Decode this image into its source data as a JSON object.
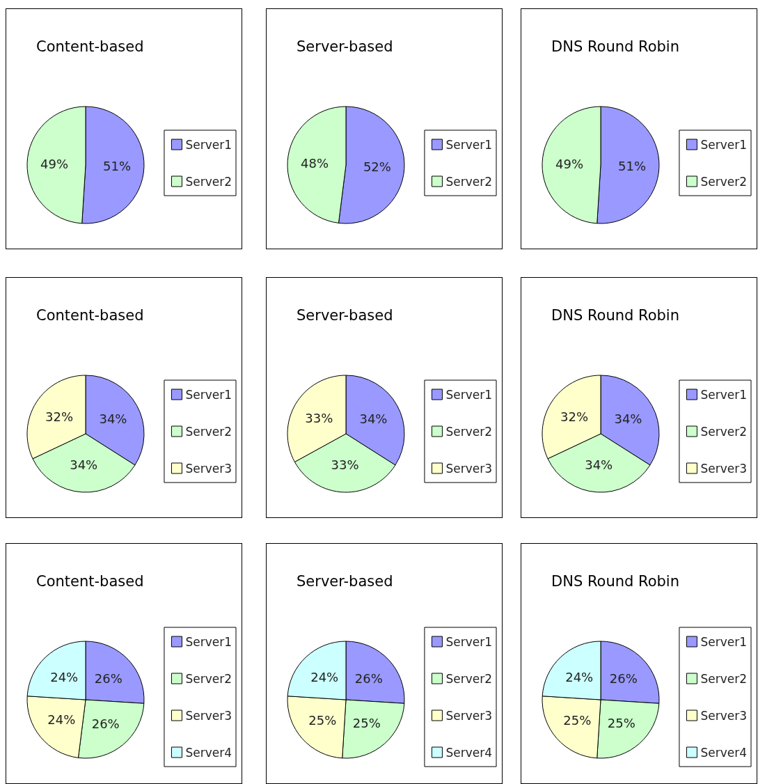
{
  "chart_data": [
    {
      "type": "pie",
      "title": "Content-based",
      "categories": [
        "Server1",
        "Server2"
      ],
      "values": [
        51,
        49
      ],
      "value_labels": [
        "51%",
        "49%"
      ],
      "colors": [
        "#9999ff",
        "#ccffcc"
      ],
      "legend": "right"
    },
    {
      "type": "pie",
      "title": "Server-based",
      "categories": [
        "Server1",
        "Server2"
      ],
      "values": [
        52,
        48
      ],
      "value_labels": [
        "52%",
        "48%"
      ],
      "colors": [
        "#9999ff",
        "#ccffcc"
      ],
      "legend": "right"
    },
    {
      "type": "pie",
      "title": "DNS Round Robin",
      "categories": [
        "Server1",
        "Server2"
      ],
      "values": [
        51,
        49
      ],
      "value_labels": [
        "51%",
        "49%"
      ],
      "colors": [
        "#9999ff",
        "#ccffcc"
      ],
      "legend": "right"
    },
    {
      "type": "pie",
      "title": "Content-based",
      "categories": [
        "Server1",
        "Server2",
        "Server3"
      ],
      "values": [
        34,
        34,
        32
      ],
      "value_labels": [
        "34%",
        "34%",
        "32%"
      ],
      "colors": [
        "#9999ff",
        "#ccffcc",
        "#ffffcc"
      ],
      "legend": "right"
    },
    {
      "type": "pie",
      "title": "Server-based",
      "categories": [
        "Server1",
        "Server2",
        "Server3"
      ],
      "values": [
        34,
        33,
        33
      ],
      "value_labels": [
        "34%",
        "33%",
        "33%"
      ],
      "colors": [
        "#9999ff",
        "#ccffcc",
        "#ffffcc"
      ],
      "legend": "right"
    },
    {
      "type": "pie",
      "title": "DNS Round Robin",
      "categories": [
        "Server1",
        "Server2",
        "Server3"
      ],
      "values": [
        34,
        34,
        32
      ],
      "value_labels": [
        "34%",
        "34%",
        "32%"
      ],
      "colors": [
        "#9999ff",
        "#ccffcc",
        "#ffffcc"
      ],
      "legend": "right"
    },
    {
      "type": "pie",
      "title": "Content-based",
      "categories": [
        "Server1",
        "Server2",
        "Server3",
        "Server4"
      ],
      "values": [
        26,
        26,
        24,
        24
      ],
      "value_labels": [
        "26%",
        "26%",
        "24%",
        "24%"
      ],
      "colors": [
        "#9999ff",
        "#ccffcc",
        "#ffffcc",
        "#ccffff"
      ],
      "legend": "right"
    },
    {
      "type": "pie",
      "title": "Server-based",
      "categories": [
        "Server1",
        "Server2",
        "Server3",
        "Server4"
      ],
      "values": [
        26,
        25,
        25,
        24
      ],
      "value_labels": [
        "26%",
        "25%",
        "25%",
        "24%"
      ],
      "colors": [
        "#9999ff",
        "#ccffcc",
        "#ffffcc",
        "#ccffff"
      ],
      "legend": "right"
    },
    {
      "type": "pie",
      "title": "DNS Round Robin",
      "categories": [
        "Server1",
        "Server2",
        "Server3",
        "Server4"
      ],
      "values": [
        26,
        25,
        25,
        24
      ],
      "value_labels": [
        "26%",
        "25%",
        "25%",
        "24%"
      ],
      "colors": [
        "#9999ff",
        "#ccffcc",
        "#ffffcc",
        "#ccffff"
      ],
      "legend": "right"
    }
  ]
}
